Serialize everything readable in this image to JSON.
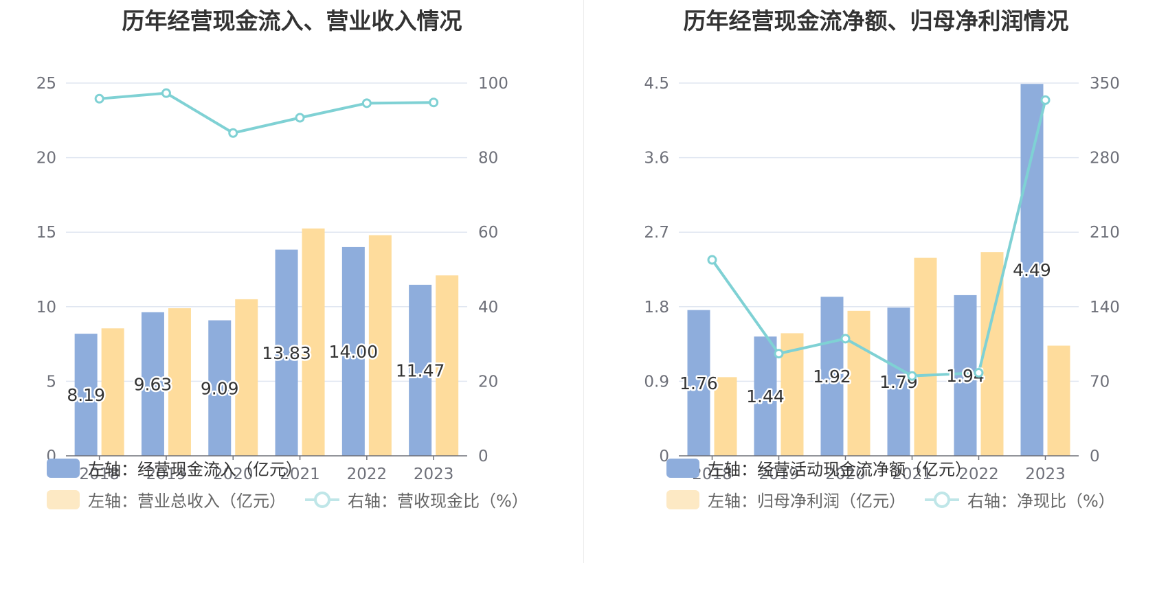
{
  "chart_data": [
    {
      "type": "bar",
      "title": "历年经营现金流入、营业收入情况",
      "categories": [
        "2018",
        "2019",
        "2020",
        "2021",
        "2022",
        "2023"
      ],
      "left_axis": {
        "ylim": [
          0,
          25
        ],
        "ticks": [
          "0",
          "5",
          "10",
          "15",
          "20",
          "25"
        ]
      },
      "right_axis": {
        "ylim": [
          0,
          100
        ],
        "ticks": [
          "0",
          "20",
          "40",
          "60",
          "80",
          "100"
        ]
      },
      "series": [
        {
          "name": "左轴：经营现金流入（亿元）",
          "type": "bar",
          "axis": "left",
          "color": "#8eaddc",
          "values": [
            8.19,
            9.63,
            9.09,
            13.83,
            14.0,
            11.47
          ],
          "labels": [
            "8.19",
            "9.63",
            "9.09",
            "13.83",
            "14.00",
            "11.47"
          ]
        },
        {
          "name": "左轴：营业总收入（亿元）",
          "type": "bar",
          "axis": "left",
          "color": "#fedc9c",
          "values": [
            8.55,
            9.9,
            10.5,
            15.25,
            14.8,
            12.1
          ]
        },
        {
          "name": "右轴：营收现金比（%）",
          "type": "line",
          "axis": "right",
          "color": "#7fd1d4",
          "values": [
            95.8,
            97.3,
            86.6,
            90.7,
            94.6,
            94.8
          ]
        }
      ]
    },
    {
      "type": "bar",
      "title": "历年经营现金流净额、归母净利润情况",
      "categories": [
        "2018",
        "2019",
        "2020",
        "2021",
        "2022",
        "2023"
      ],
      "left_axis": {
        "ylim": [
          0,
          4.5
        ],
        "ticks": [
          "0",
          "0.9",
          "1.8",
          "2.7",
          "3.6",
          "4.5"
        ]
      },
      "right_axis": {
        "ylim": [
          0,
          350
        ],
        "ticks": [
          "0",
          "70",
          "140",
          "210",
          "280",
          "350"
        ]
      },
      "series": [
        {
          "name": "左轴：经营活动现金流净额（亿元）",
          "type": "bar",
          "axis": "left",
          "color": "#8eaddc",
          "values": [
            1.76,
            1.44,
            1.92,
            1.79,
            1.94,
            4.49
          ],
          "labels": [
            "1.76",
            "1.44",
            "1.92",
            "1.79",
            "1.94",
            "4.49"
          ]
        },
        {
          "name": "左轴：归母净利润（亿元）",
          "type": "bar",
          "axis": "left",
          "color": "#fedc9c",
          "values": [
            0.95,
            1.48,
            1.75,
            2.39,
            2.46,
            1.33
          ]
        },
        {
          "name": "右轴：净现比（%）",
          "type": "line",
          "axis": "right",
          "color": "#7fd1d4",
          "values": [
            184,
            96,
            110,
            75,
            78,
            334
          ]
        }
      ]
    }
  ]
}
